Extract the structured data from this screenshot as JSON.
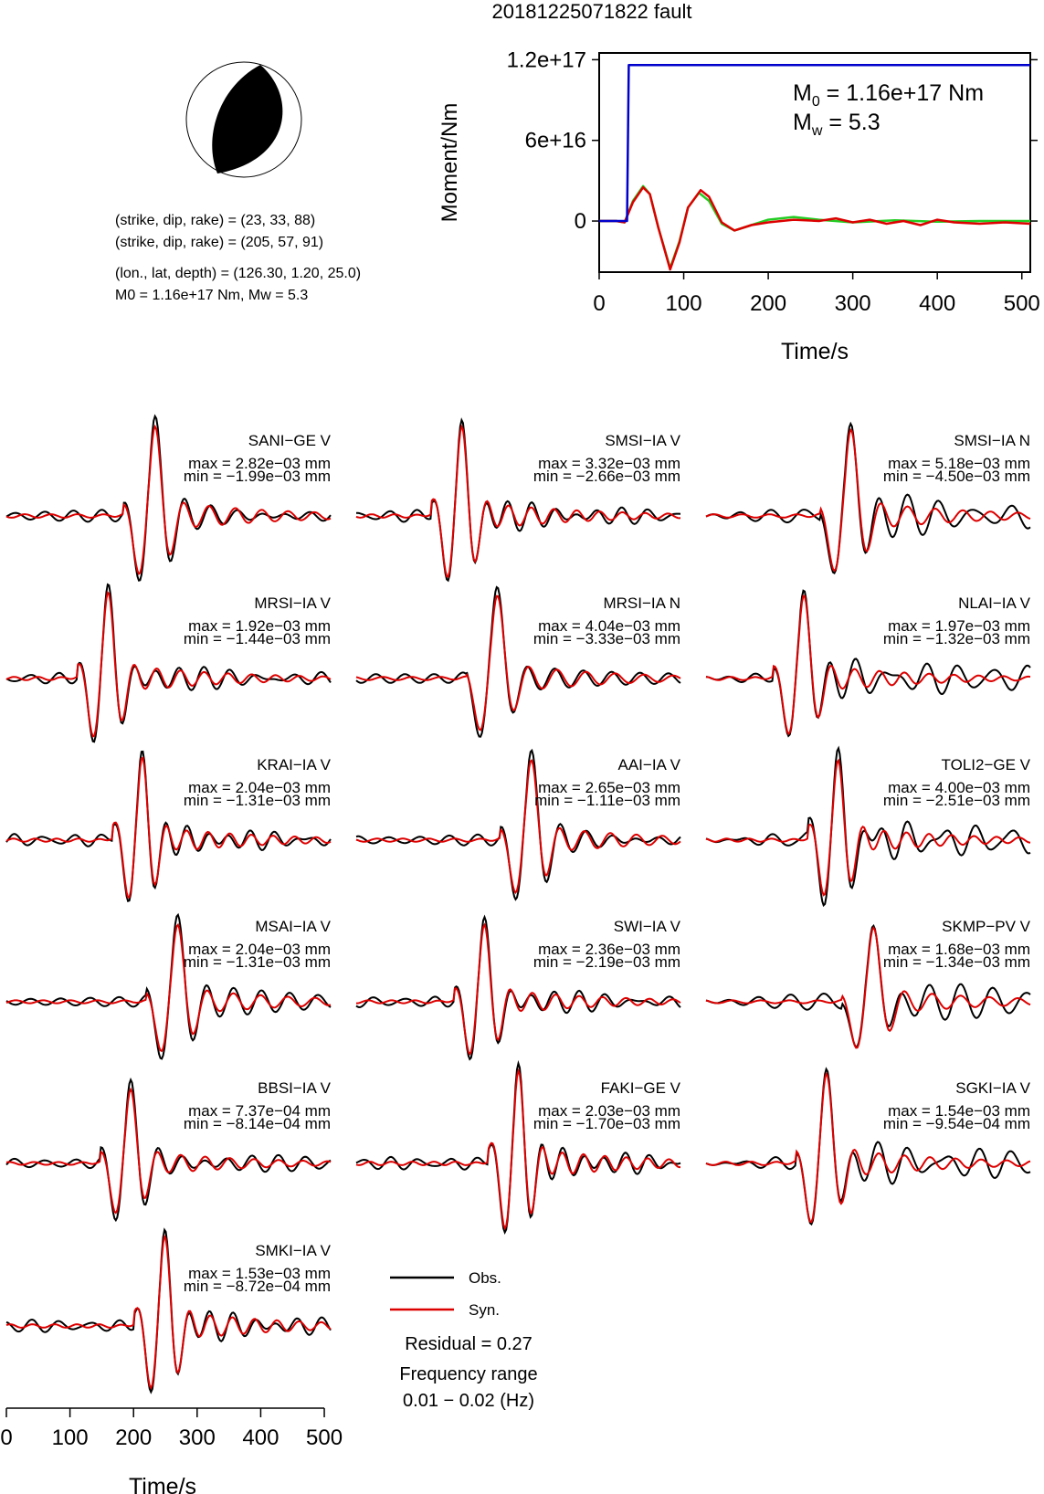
{
  "title": "20181225071822 fault",
  "focal": {
    "line1": "(strike, dip, rake) = (23, 33, 88)",
    "line2": "(strike, dip, rake) = (205, 57, 91)",
    "line3": "(lon., lat, depth) = (126.30, 1.20, 25.0)",
    "line4": "M0 = 1.16e+17 Nm, Mw = 5.3"
  },
  "colors": {
    "obs": "#000000",
    "syn": "#dd0000",
    "moment": "#0000cc",
    "green": "#22cc22"
  },
  "legend": {
    "obs": "Obs.",
    "syn": "Syn."
  },
  "residual": "Residual = 0.27",
  "freq_label": "Frequency range",
  "freq_value": "0.01 − 0.02 (Hz)",
  "chart_data": [
    {
      "type": "line",
      "xlabel": "Time/s",
      "ylabel": "Moment/Nm",
      "xlim": [
        0,
        510
      ],
      "ylim": [
        -3.8e+16,
        1.25e+17
      ],
      "xticks": [
        0,
        100,
        200,
        300,
        400,
        500
      ],
      "yticks": [
        {
          "value": 0,
          "label": "0"
        },
        {
          "value": 6e+16,
          "label": "6e+16"
        },
        {
          "value": 1.2e+17,
          "label": "1.2e+17"
        }
      ],
      "annotation": {
        "m0_sym": "M",
        "m0_sub": "0",
        "m0_val": " = 1.16e+17 Nm",
        "mw_sym": "M",
        "mw_sub": "w",
        "mw_val": " = 5.3"
      },
      "series": [
        {
          "color": "#0000cc",
          "x": [
            0,
            33,
            35,
            510
          ],
          "y": [
            0,
            0,
            1.16e+17,
            1.16e+17
          ]
        },
        {
          "color": "#22cc22",
          "x": [
            0,
            20,
            30,
            40,
            52,
            60,
            70,
            84,
            95,
            105,
            118,
            130,
            145,
            160,
            180,
            200,
            230,
            260,
            300,
            350,
            400,
            450,
            510
          ],
          "y": [
            0,
            0,
            -1000000000000000.0,
            1.5e+16,
            2.6e+16,
            2e+16,
            -5000000000000000.0,
            -3.5e+16,
            -1.5e+16,
            1e+16,
            2.1e+16,
            1.5e+16,
            -2000000000000000.0,
            -7000000000000000.0,
            -3000000000000000.0,
            1000000000000000.0,
            3000000000000000.0,
            1000000000000000.0,
            -1000000000000000.0,
            500000000000000.0,
            -500000000000000.0,
            0,
            0
          ]
        },
        {
          "color": "#dd0000",
          "x": [
            0,
            20,
            30,
            40,
            52,
            60,
            70,
            84,
            95,
            105,
            120,
            130,
            145,
            160,
            180,
            200,
            230,
            260,
            280,
            300,
            320,
            340,
            360,
            380,
            400,
            420,
            450,
            480,
            510
          ],
          "y": [
            0,
            0,
            -1000000000000000.0,
            1.4e+16,
            2.5e+16,
            2e+16,
            -5000000000000000.0,
            -3.6e+16,
            -1.6e+16,
            1e+16,
            2.3e+16,
            1.8e+16,
            -1000000000000000.0,
            -7000000000000000.0,
            -3000000000000000.0,
            -1000000000000000.0,
            1000000000000000.0,
            0,
            2000000000000000.0,
            -1000000000000000.0,
            1000000000000000.0,
            -2000000000000000.0,
            0,
            -3000000000000000.0,
            1000000000000000.0,
            -1000000000000000.0,
            -2000000000000000.0,
            -1000000000000000.0,
            -2000000000000000.0
          ]
        }
      ]
    },
    {
      "type": "line",
      "xlabel": "Time/s",
      "xlim": [
        0,
        510
      ],
      "xticks": [
        0,
        100,
        200,
        300,
        400,
        500
      ],
      "series": [
        {
          "name": "Obs."
        },
        {
          "name": "Syn."
        }
      ]
    }
  ],
  "stations": [
    {
      "name": "SANI−GE V",
      "max": "max = 2.82e−03 mm",
      "min": "min = −1.99e−03 mm"
    },
    {
      "name": "SMSI−IA V",
      "max": "max = 3.32e−03 mm",
      "min": "min = −2.66e−03 mm"
    },
    {
      "name": "SMSI−IA N",
      "max": "max = 5.18e−03 mm",
      "min": "min = −4.50e−03 mm"
    },
    {
      "name": "MRSI−IA V",
      "max": "max = 1.92e−03 mm",
      "min": "min = −1.44e−03 mm"
    },
    {
      "name": "MRSI−IA N",
      "max": "max = 4.04e−03 mm",
      "min": "min = −3.33e−03 mm"
    },
    {
      "name": "NLAI−IA V",
      "max": "max = 1.97e−03 mm",
      "min": "min = −1.32e−03 mm"
    },
    {
      "name": "KRAI−IA V",
      "max": "max = 2.04e−03 mm",
      "min": "min = −1.31e−03 mm"
    },
    {
      "name": "AAI−IA V",
      "max": "max = 2.65e−03 mm",
      "min": "min = −1.11e−03 mm"
    },
    {
      "name": "TOLI2−GE V",
      "max": "max = 4.00e−03 mm",
      "min": "min = −2.51e−03 mm"
    },
    {
      "name": "MSAI−IA V",
      "max": "max = 2.04e−03 mm",
      "min": "min = −1.31e−03 mm"
    },
    {
      "name": "SWI−IA V",
      "max": "max = 2.36e−03 mm",
      "min": "min = −2.19e−03 mm"
    },
    {
      "name": "SKMP−PV V",
      "max": "max = 1.68e−03 mm",
      "min": "min = −1.34e−03 mm"
    },
    {
      "name": "BBSI−IA V",
      "max": "max = 7.37e−04 mm",
      "min": "min = −8.14e−04 mm"
    },
    {
      "name": "FAKI−GE V",
      "max": "max = 2.03e−03 mm",
      "min": "min = −1.70e−03 mm"
    },
    {
      "name": "SGKI−IA V",
      "max": "max = 1.54e−03 mm",
      "min": "min = −9.54e−04 mm"
    },
    {
      "name": "SMKI−IA V",
      "max": "max = 1.53e−03 mm",
      "min": "min = −8.72e−04 mm"
    }
  ]
}
